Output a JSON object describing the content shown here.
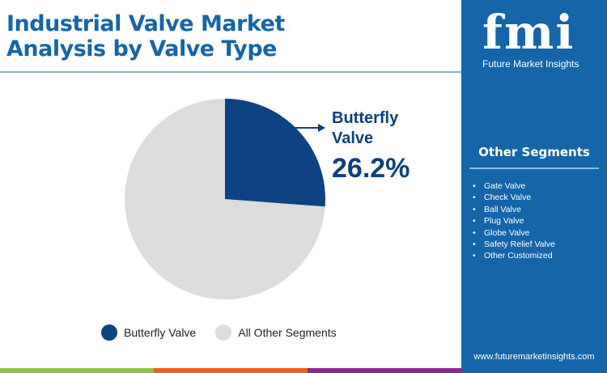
{
  "header": {
    "title_line1": "Industrial Valve Market",
    "title_line2": "Analysis by Valve Type"
  },
  "chart_data": {
    "type": "pie",
    "title": "Industrial Valve Market Analysis by Valve Type",
    "categories": [
      "Butterfly Valve",
      "All Other Segments"
    ],
    "values": [
      26.2,
      73.8
    ],
    "colors": [
      "#0d4283",
      "#dcdcdc"
    ],
    "legend_position": "bottom",
    "annotation": {
      "label": "Butterfly Valve",
      "value": "26.2%"
    }
  },
  "callout": {
    "name_line1": "Butterfly",
    "name_line2": "Valve",
    "value": "26.2%"
  },
  "legend": [
    {
      "label": "Butterfly Valve",
      "color": "#0d4283"
    },
    {
      "label": "All Other Segments",
      "color": "#dcdcdc"
    }
  ],
  "sidebar": {
    "logo_text": "fmi",
    "logo_sub": "Future Market Insights",
    "segments_title": "Other Segments",
    "segments": [
      "Gate Valve",
      "Check Valve",
      "Ball Valve",
      "Plug Valve",
      "Globe Valve",
      "Safety Relief Valve",
      "Other Customized"
    ],
    "url": "www.futuremarketinsights.com"
  },
  "footer_colors": [
    "#8bc34a",
    "#e8601f",
    "#8b2a8b"
  ]
}
